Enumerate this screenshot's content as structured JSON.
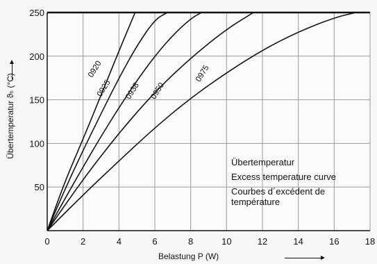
{
  "chart_data": {
    "type": "line",
    "xlabel": "Belastung P (W)",
    "ylabel": "Übertemperatur ϑₕ (°C)",
    "xlim": [
      0,
      18
    ],
    "ylim": [
      0,
      250
    ],
    "x_ticks": [
      0,
      2,
      4,
      6,
      8,
      10,
      12,
      14,
      16,
      18
    ],
    "y_ticks": [
      50,
      100,
      150,
      200,
      250
    ],
    "grid": true,
    "legend_lines": [
      "Übertemperatur",
      "Excess temperature curve",
      "Courbes d´excédent de température"
    ],
    "series": [
      {
        "name": "0920",
        "label_x": 2.5,
        "label_y": 175,
        "points": [
          [
            0,
            0
          ],
          [
            1,
            57
          ],
          [
            2,
            105
          ],
          [
            3,
            155
          ],
          [
            4,
            206
          ],
          [
            4.9,
            250
          ]
        ]
      },
      {
        "name": "0925",
        "label_x": 3.0,
        "label_y": 153,
        "points": [
          [
            0,
            0
          ],
          [
            1,
            48
          ],
          [
            2,
            92
          ],
          [
            3,
            134
          ],
          [
            4,
            175
          ],
          [
            5,
            212
          ],
          [
            6,
            242
          ],
          [
            6.7,
            250
          ]
        ]
      },
      {
        "name": "0938",
        "label_x": 4.6,
        "label_y": 150,
        "points": [
          [
            0,
            0
          ],
          [
            1,
            37
          ],
          [
            2,
            73
          ],
          [
            3,
            108
          ],
          [
            4,
            141
          ],
          [
            5,
            172
          ],
          [
            6,
            200
          ],
          [
            7,
            224
          ],
          [
            8,
            243
          ],
          [
            8.6,
            250
          ]
        ]
      },
      {
        "name": "0950",
        "label_x": 6.0,
        "label_y": 150,
        "points": [
          [
            0,
            0
          ],
          [
            2,
            59
          ],
          [
            4,
            112
          ],
          [
            6,
            159
          ],
          [
            8,
            198
          ],
          [
            10,
            231
          ],
          [
            11.5,
            250
          ]
        ]
      },
      {
        "name": "0975",
        "label_x": 8.5,
        "label_y": 170,
        "points": [
          [
            0,
            0
          ],
          [
            2,
            41
          ],
          [
            4,
            80
          ],
          [
            6,
            118
          ],
          [
            8,
            152
          ],
          [
            10,
            181
          ],
          [
            12,
            207
          ],
          [
            14,
            228
          ],
          [
            16,
            244
          ],
          [
            17.2,
            250
          ]
        ]
      }
    ]
  }
}
